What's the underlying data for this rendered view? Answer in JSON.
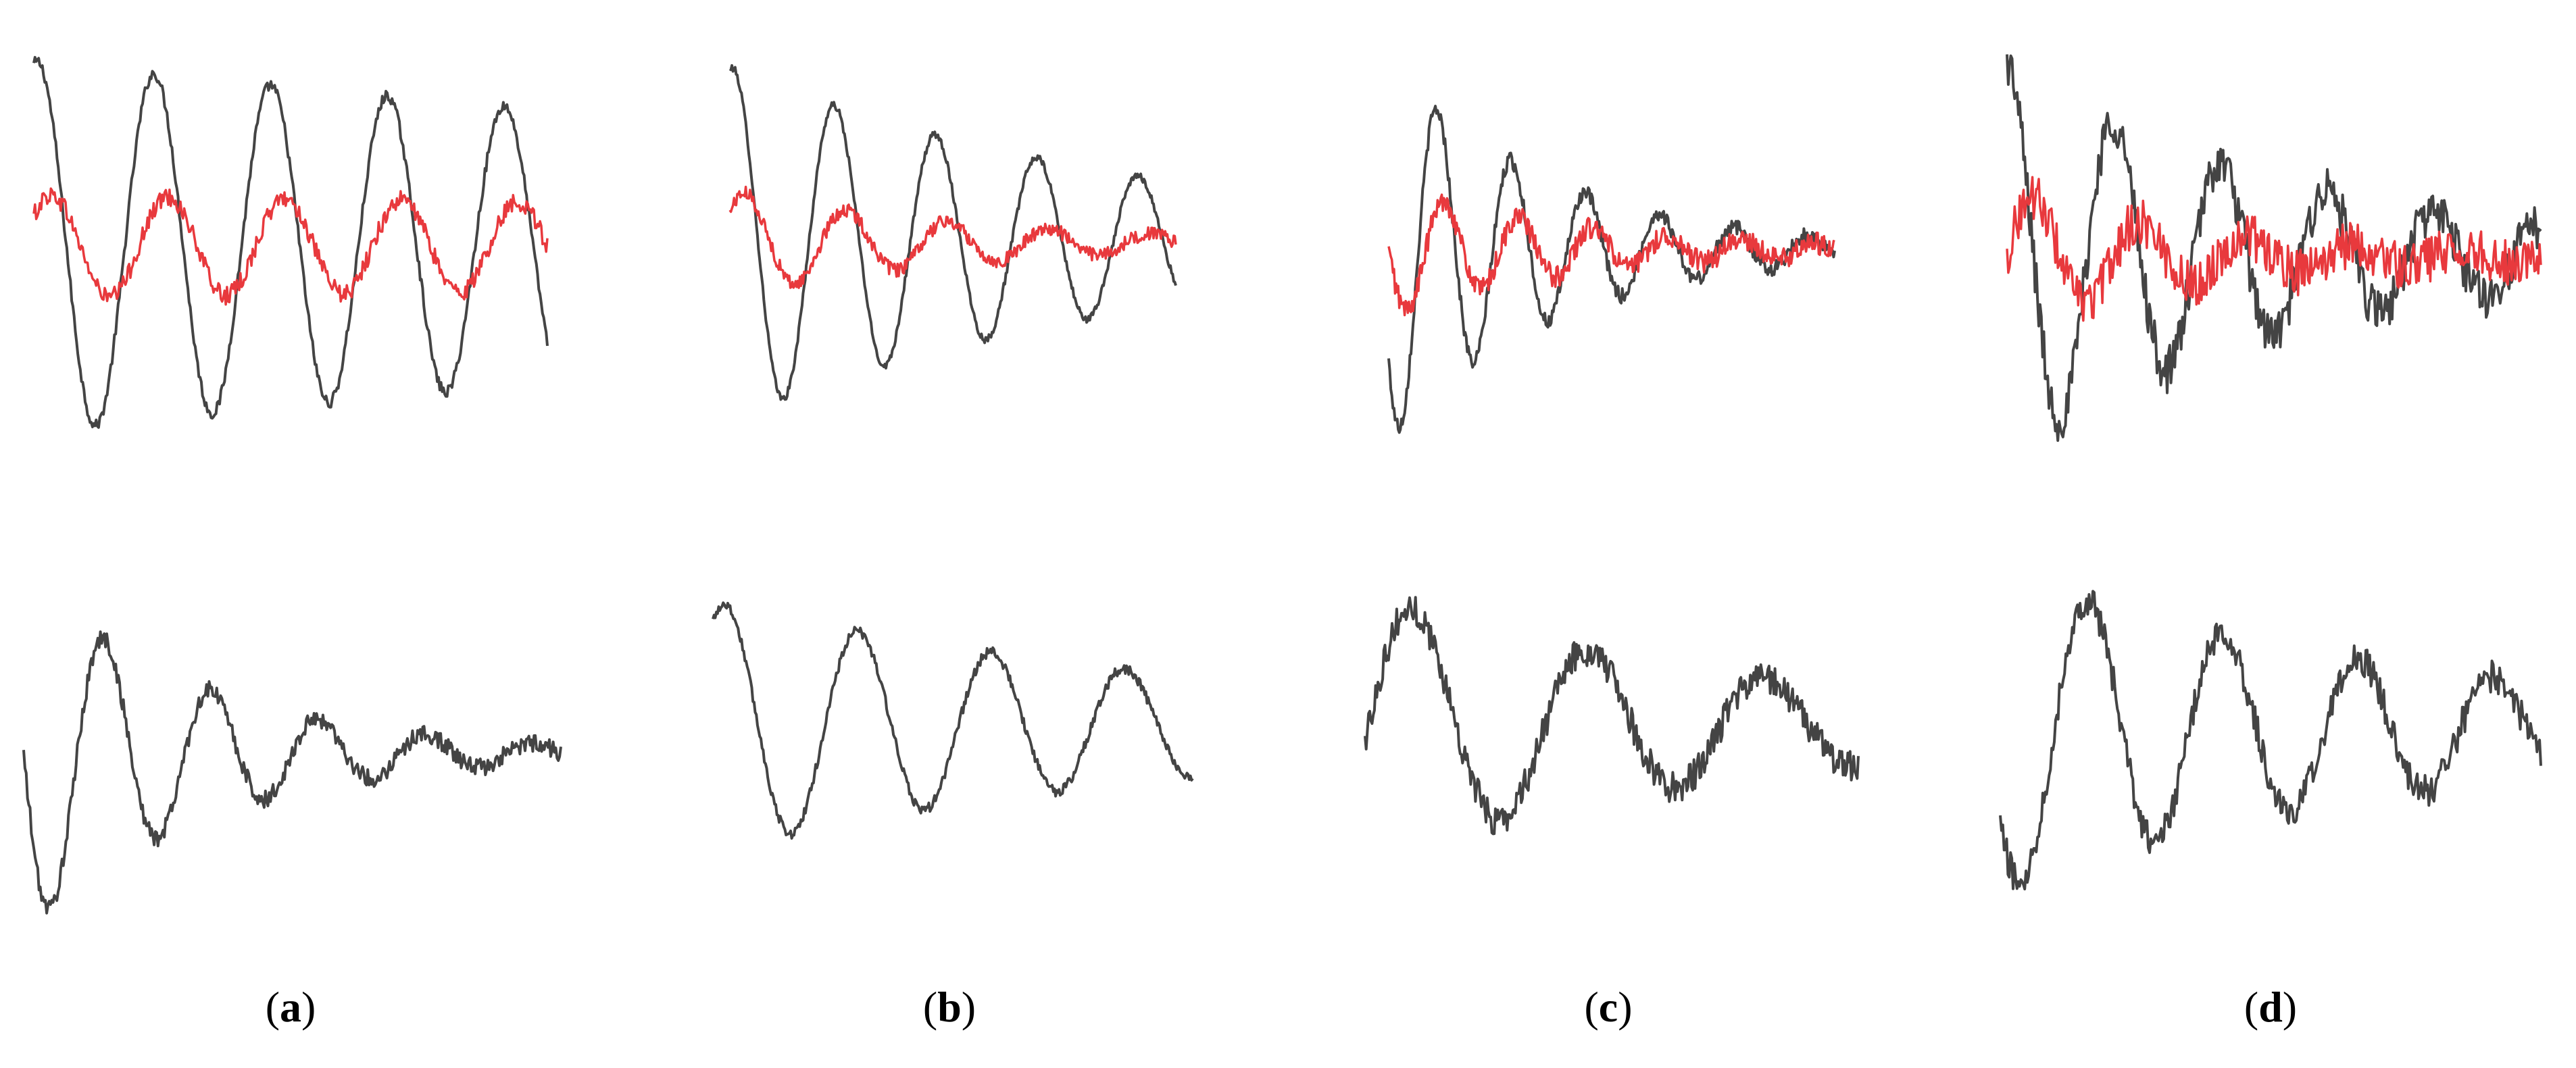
{
  "figure": {
    "panels": [
      {
        "label": "a",
        "caption_open": "(",
        "caption_close": ")"
      },
      {
        "label": "b",
        "caption_open": "(",
        "caption_close": ")"
      },
      {
        "label": "c",
        "caption_open": "(",
        "caption_close": ")"
      },
      {
        "label": "d",
        "caption_open": "(",
        "caption_close": ")"
      }
    ]
  },
  "chart_data": [
    {
      "type": "line",
      "panel": "a",
      "row": "top",
      "title": "",
      "xlabel": "",
      "ylabel": "",
      "grid": false,
      "legend": "none",
      "series": [
        {
          "color": "#444444",
          "decay": 0.1,
          "cycles": 4.4,
          "offset": 0.05,
          "noise": 0.03
        },
        {
          "color": "#e8393d",
          "decay": 0.05,
          "cycles": 4.4,
          "offset": 0.25,
          "amp": 0.28,
          "noise": 0.05
        }
      ]
    },
    {
      "type": "line",
      "panel": "b",
      "row": "top",
      "title": "",
      "xlabel": "",
      "ylabel": "",
      "grid": false,
      "legend": "none",
      "series": [
        {
          "color": "#444444",
          "decay": 0.35,
          "cycles": 4.4,
          "offset": 0.05,
          "noise": 0.02
        },
        {
          "color": "#e8393d",
          "decay": 0.6,
          "cycles": 4.4,
          "offset": 0.25,
          "amp": 0.3,
          "noise": 0.04
        }
      ]
    },
    {
      "type": "line",
      "panel": "c",
      "row": "top",
      "title": "",
      "xlabel": "",
      "ylabel": "",
      "grid": false,
      "legend": "none",
      "series": [
        {
          "color": "#444444",
          "decay": 0.9,
          "cycles": 6.0,
          "offset": 0.1,
          "noise": 0.04
        },
        {
          "color": "#e8393d",
          "decay": 0.8,
          "cycles": 6.0,
          "offset": 0.25,
          "amp": 0.35,
          "noise": 0.06
        }
      ]
    },
    {
      "type": "line",
      "panel": "d",
      "row": "top",
      "title": "",
      "xlabel": "",
      "ylabel": "",
      "grid": false,
      "legend": "none",
      "series": [
        {
          "color": "#444444",
          "decay": 0.6,
          "cycles": 5.0,
          "offset": 0.05,
          "noise": 0.12
        },
        {
          "color": "#e8393d",
          "decay": 0.9,
          "cycles": 5.0,
          "offset": 0.2,
          "amp": 0.35,
          "noise": 0.12
        }
      ]
    },
    {
      "type": "line",
      "panel": "a",
      "row": "bottom",
      "title": "",
      "xlabel": "",
      "ylabel": "",
      "grid": false,
      "legend": "none",
      "series": [
        {
          "color": "#444444",
          "decay": 1.0,
          "cycles": 5.0,
          "offset": 0.3,
          "noise": 0.05
        }
      ]
    },
    {
      "type": "line",
      "panel": "b",
      "row": "bottom",
      "title": "",
      "xlabel": "",
      "ylabel": "",
      "grid": false,
      "legend": "none",
      "series": [
        {
          "color": "#444444",
          "decay": 0.3,
          "cycles": 3.6,
          "offset": 0.6,
          "noise": 0.04
        }
      ]
    },
    {
      "type": "line",
      "panel": "c",
      "row": "bottom",
      "title": "",
      "xlabel": "",
      "ylabel": "",
      "grid": false,
      "legend": "none",
      "series": [
        {
          "color": "#444444",
          "decay": 0.4,
          "cycles": 2.8,
          "offset": 0.35,
          "noise": 0.12
        }
      ]
    },
    {
      "type": "line",
      "panel": "d",
      "row": "bottom",
      "title": "",
      "xlabel": "",
      "ylabel": "",
      "grid": false,
      "legend": "none",
      "series": [
        {
          "color": "#444444",
          "decay": 0.4,
          "cycles": 4.0,
          "offset": 0.4,
          "noise": 0.1
        }
      ]
    }
  ]
}
